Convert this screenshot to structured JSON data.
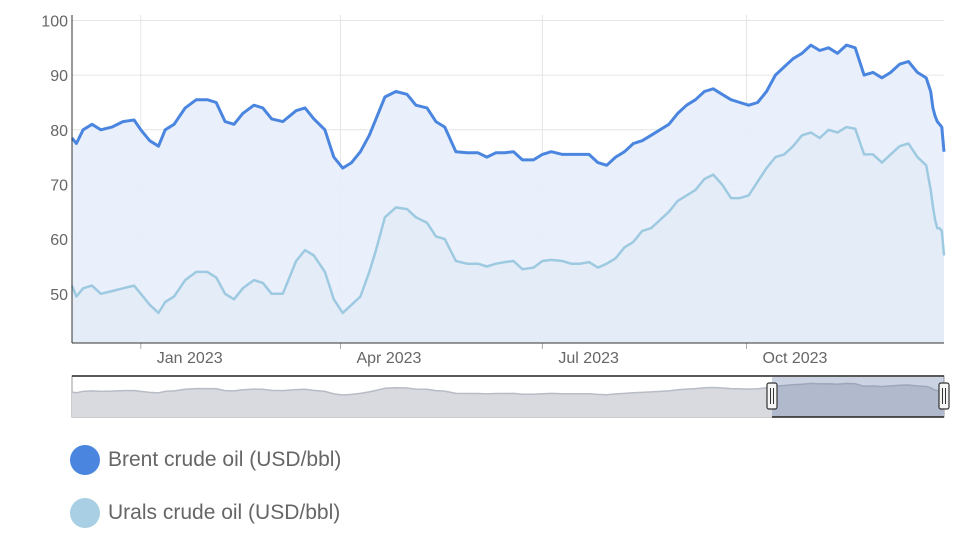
{
  "chart_data": {
    "type": "area",
    "title": "",
    "xlabel": "",
    "ylabel": "",
    "ylim": [
      41,
      101
    ],
    "yticks": [
      50,
      60,
      70,
      80,
      90,
      100
    ],
    "ytick_labels": [
      "50",
      "60",
      "70",
      "80",
      "90",
      "100"
    ],
    "xlim": [
      "2022-12-01",
      "2023-12-29"
    ],
    "xticks": [
      "2023-01-01",
      "2023-04-01",
      "2023-07-01",
      "2023-10-01"
    ],
    "xtick_labels": [
      "Jan 2023",
      "Apr 2023",
      "Jul 2023",
      "Oct 2023"
    ],
    "grid": true,
    "legend_position": "bottom-left",
    "navigator": true,
    "series": [
      {
        "name": "Brent crude oil (USD/bbl)",
        "color": "#4a86e0",
        "fill": "#e8eefb",
        "points": [
          [
            "2022-12-01",
            78.5
          ],
          [
            "2022-12-03",
            77.5
          ],
          [
            "2022-12-06",
            80
          ],
          [
            "2022-12-10",
            81
          ],
          [
            "2022-12-14",
            80
          ],
          [
            "2022-12-19",
            80.5
          ],
          [
            "2022-12-24",
            81.5
          ],
          [
            "2022-12-29",
            81.8
          ],
          [
            "2023-01-01",
            80
          ],
          [
            "2023-01-05",
            78
          ],
          [
            "2023-01-09",
            77
          ],
          [
            "2023-01-12",
            80
          ],
          [
            "2023-01-16",
            81
          ],
          [
            "2023-01-21",
            84
          ],
          [
            "2023-01-26",
            85.5
          ],
          [
            "2023-01-31",
            85.5
          ],
          [
            "2023-02-04",
            85
          ],
          [
            "2023-02-08",
            81.5
          ],
          [
            "2023-02-12",
            81
          ],
          [
            "2023-02-16",
            83
          ],
          [
            "2023-02-21",
            84.5
          ],
          [
            "2023-02-25",
            84
          ],
          [
            "2023-03-01",
            82
          ],
          [
            "2023-03-06",
            81.5
          ],
          [
            "2023-03-12",
            83.5
          ],
          [
            "2023-03-16",
            84
          ],
          [
            "2023-03-20",
            82
          ],
          [
            "2023-03-25",
            80
          ],
          [
            "2023-03-29",
            75
          ],
          [
            "2023-04-02",
            73
          ],
          [
            "2023-04-06",
            74
          ],
          [
            "2023-04-10",
            76
          ],
          [
            "2023-04-14",
            79
          ],
          [
            "2023-04-17",
            82
          ],
          [
            "2023-04-21",
            86
          ],
          [
            "2023-04-26",
            87
          ],
          [
            "2023-05-01",
            86.5
          ],
          [
            "2023-05-05",
            84.5
          ],
          [
            "2023-05-10",
            84
          ],
          [
            "2023-05-14",
            81.5
          ],
          [
            "2023-05-18",
            80.5
          ],
          [
            "2023-05-23",
            76
          ],
          [
            "2023-05-28",
            75.8
          ],
          [
            "2023-06-02",
            75.8
          ],
          [
            "2023-06-06",
            75
          ],
          [
            "2023-06-10",
            75.8
          ],
          [
            "2023-06-14",
            75.8
          ],
          [
            "2023-06-18",
            76
          ],
          [
            "2023-06-22",
            74.5
          ],
          [
            "2023-06-27",
            74.5
          ],
          [
            "2023-07-01",
            75.5
          ],
          [
            "2023-07-05",
            76
          ],
          [
            "2023-07-10",
            75.5
          ],
          [
            "2023-07-14",
            75.5
          ],
          [
            "2023-07-18",
            75.5
          ],
          [
            "2023-07-22",
            75.5
          ],
          [
            "2023-07-26",
            74
          ],
          [
            "2023-07-30",
            73.5
          ],
          [
            "2023-08-03",
            75
          ],
          [
            "2023-08-07",
            76
          ],
          [
            "2023-08-11",
            77.5
          ],
          [
            "2023-08-15",
            78
          ],
          [
            "2023-08-19",
            79
          ],
          [
            "2023-08-23",
            80
          ],
          [
            "2023-08-27",
            81
          ],
          [
            "2023-08-31",
            83
          ],
          [
            "2023-09-04",
            84.5
          ],
          [
            "2023-09-08",
            85.5
          ],
          [
            "2023-09-12",
            87
          ],
          [
            "2023-09-16",
            87.5
          ],
          [
            "2023-09-20",
            86.5
          ],
          [
            "2023-09-24",
            85.5
          ],
          [
            "2023-09-28",
            85
          ],
          [
            "2023-10-02",
            84.5
          ],
          [
            "2023-10-06",
            85
          ],
          [
            "2023-10-10",
            87
          ],
          [
            "2023-10-14",
            90
          ],
          [
            "2023-10-18",
            91.5
          ],
          [
            "2023-10-22",
            93
          ],
          [
            "2023-10-26",
            94
          ],
          [
            "2023-10-30",
            95.5
          ],
          [
            "2023-11-03",
            94.5
          ],
          [
            "2023-11-07",
            95
          ],
          [
            "2023-11-11",
            94
          ],
          [
            "2023-11-15",
            95.5
          ],
          [
            "2023-11-19",
            95
          ],
          [
            "2023-11-23",
            90
          ],
          [
            "2023-11-27",
            90.5
          ],
          [
            "2023-12-01",
            89.5
          ],
          [
            "2023-12-05",
            90.5
          ],
          [
            "2023-12-09",
            92
          ],
          [
            "2023-12-13",
            92.5
          ],
          [
            "2023-12-17",
            90.5
          ],
          [
            "2023-12-21",
            89.5
          ],
          [
            "2023-12-23",
            87
          ],
          [
            "2023-12-24",
            84
          ],
          [
            "2023-12-25",
            82.5
          ],
          [
            "2023-12-26",
            81.5
          ],
          [
            "2023-12-27",
            81
          ],
          [
            "2023-12-28",
            80.5
          ],
          [
            "2023-12-29",
            76
          ]
        ]
      },
      {
        "name": "Urals crude oil (USD/bbl)",
        "color": "#9ecae1",
        "fill": "#e3ebf6",
        "points": [
          [
            "2022-12-01",
            51.5
          ],
          [
            "2022-12-03",
            49.5
          ],
          [
            "2022-12-06",
            51
          ],
          [
            "2022-12-10",
            51.5
          ],
          [
            "2022-12-14",
            50
          ],
          [
            "2022-12-19",
            50.5
          ],
          [
            "2022-12-24",
            51
          ],
          [
            "2022-12-29",
            51.5
          ],
          [
            "2023-01-01",
            50
          ],
          [
            "2023-01-05",
            48
          ],
          [
            "2023-01-09",
            46.5
          ],
          [
            "2023-01-12",
            48.5
          ],
          [
            "2023-01-16",
            49.5
          ],
          [
            "2023-01-21",
            52.5
          ],
          [
            "2023-01-26",
            54
          ],
          [
            "2023-01-31",
            54
          ],
          [
            "2023-02-04",
            53
          ],
          [
            "2023-02-08",
            50
          ],
          [
            "2023-02-12",
            49
          ],
          [
            "2023-02-16",
            51
          ],
          [
            "2023-02-21",
            52.5
          ],
          [
            "2023-02-25",
            52
          ],
          [
            "2023-03-01",
            50
          ],
          [
            "2023-03-06",
            50
          ],
          [
            "2023-03-12",
            56
          ],
          [
            "2023-03-16",
            58
          ],
          [
            "2023-03-20",
            57
          ],
          [
            "2023-03-25",
            54
          ],
          [
            "2023-03-29",
            49
          ],
          [
            "2023-04-02",
            46.5
          ],
          [
            "2023-04-06",
            48
          ],
          [
            "2023-04-10",
            49.5
          ],
          [
            "2023-04-14",
            54
          ],
          [
            "2023-04-17",
            58
          ],
          [
            "2023-04-21",
            64
          ],
          [
            "2023-04-26",
            65.8
          ],
          [
            "2023-05-01",
            65.5
          ],
          [
            "2023-05-05",
            64
          ],
          [
            "2023-05-10",
            63
          ],
          [
            "2023-05-14",
            60.5
          ],
          [
            "2023-05-18",
            60
          ],
          [
            "2023-05-23",
            56
          ],
          [
            "2023-05-28",
            55.5
          ],
          [
            "2023-06-02",
            55.5
          ],
          [
            "2023-06-06",
            55
          ],
          [
            "2023-06-10",
            55.5
          ],
          [
            "2023-06-14",
            55.8
          ],
          [
            "2023-06-18",
            56
          ],
          [
            "2023-06-22",
            54.5
          ],
          [
            "2023-06-27",
            54.8
          ],
          [
            "2023-07-01",
            56
          ],
          [
            "2023-07-05",
            56.2
          ],
          [
            "2023-07-10",
            56
          ],
          [
            "2023-07-14",
            55.5
          ],
          [
            "2023-07-18",
            55.5
          ],
          [
            "2023-07-22",
            55.8
          ],
          [
            "2023-07-26",
            54.8
          ],
          [
            "2023-07-30",
            55.5
          ],
          [
            "2023-08-03",
            56.5
          ],
          [
            "2023-08-07",
            58.5
          ],
          [
            "2023-08-11",
            59.5
          ],
          [
            "2023-08-15",
            61.5
          ],
          [
            "2023-08-19",
            62
          ],
          [
            "2023-08-23",
            63.5
          ],
          [
            "2023-08-27",
            65
          ],
          [
            "2023-08-31",
            67
          ],
          [
            "2023-09-04",
            68
          ],
          [
            "2023-09-08",
            69
          ],
          [
            "2023-09-12",
            71
          ],
          [
            "2023-09-16",
            71.8
          ],
          [
            "2023-09-20",
            70
          ],
          [
            "2023-09-24",
            67.5
          ],
          [
            "2023-09-28",
            67.5
          ],
          [
            "2023-10-02",
            68
          ],
          [
            "2023-10-06",
            70.5
          ],
          [
            "2023-10-10",
            73
          ],
          [
            "2023-10-14",
            75
          ],
          [
            "2023-10-18",
            75.5
          ],
          [
            "2023-10-22",
            77
          ],
          [
            "2023-10-26",
            79
          ],
          [
            "2023-10-30",
            79.5
          ],
          [
            "2023-11-03",
            78.5
          ],
          [
            "2023-11-07",
            80
          ],
          [
            "2023-11-11",
            79.5
          ],
          [
            "2023-11-15",
            80.5
          ],
          [
            "2023-11-19",
            80.2
          ],
          [
            "2023-11-23",
            75.5
          ],
          [
            "2023-11-27",
            75.5
          ],
          [
            "2023-12-01",
            74
          ],
          [
            "2023-12-05",
            75.5
          ],
          [
            "2023-12-09",
            77
          ],
          [
            "2023-12-13",
            77.5
          ],
          [
            "2023-12-17",
            75
          ],
          [
            "2023-12-21",
            73.5
          ],
          [
            "2023-12-23",
            69
          ],
          [
            "2023-12-24",
            66
          ],
          [
            "2023-12-25",
            63.5
          ],
          [
            "2023-12-26",
            62
          ],
          [
            "2023-12-27",
            62
          ],
          [
            "2023-12-28",
            61.5
          ],
          [
            "2023-12-29",
            57
          ]
        ]
      }
    ]
  }
}
